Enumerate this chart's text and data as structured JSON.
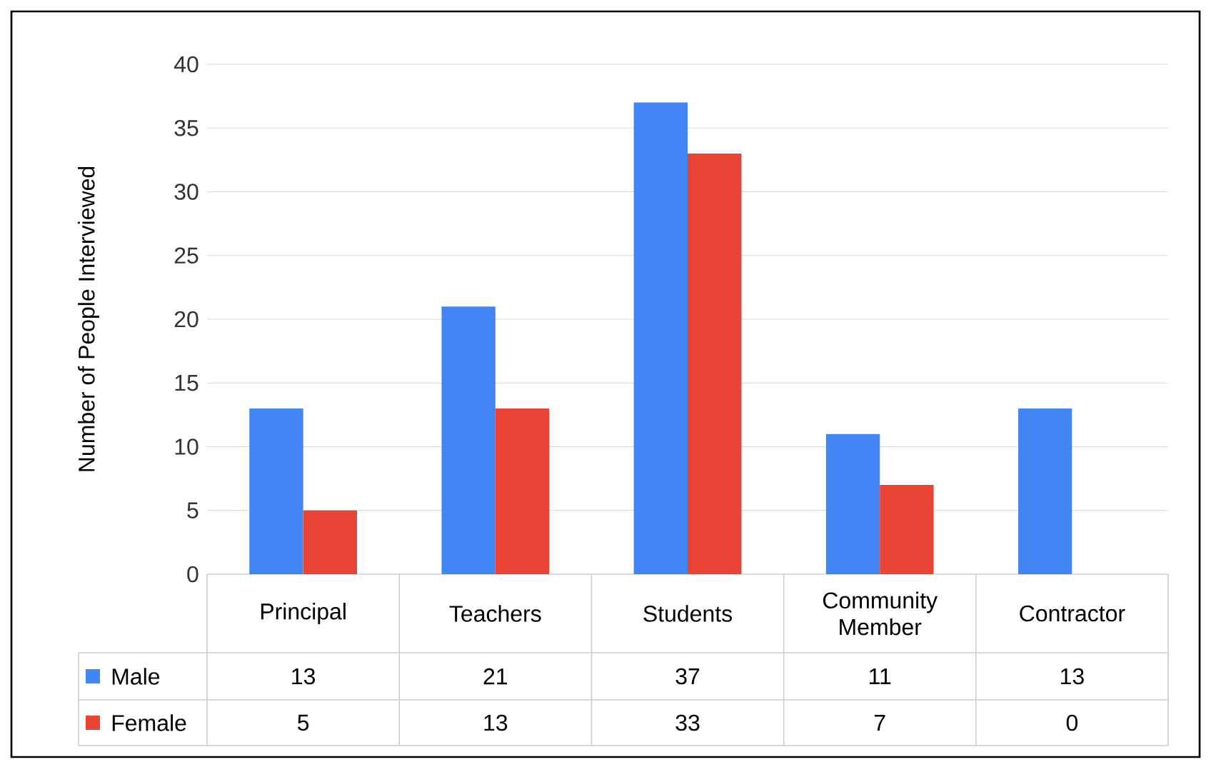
{
  "chart_data": {
    "type": "bar",
    "ylabel": "Number of People Interviewed",
    "categories": [
      "Principal",
      "Teachers",
      "Students",
      "Community Member",
      "Contractor"
    ],
    "series": [
      {
        "name": "Male",
        "color": "#4285f4",
        "values": [
          13,
          21,
          37,
          11,
          13
        ]
      },
      {
        "name": "Female",
        "color": "#ea4335",
        "values": [
          5,
          13,
          33,
          7,
          0
        ]
      }
    ],
    "ylim": [
      0,
      40
    ],
    "yticks": [
      0,
      5,
      10,
      15,
      20,
      25,
      30,
      35,
      40
    ],
    "grid": "y",
    "legend": "bottom",
    "data_labels": true
  }
}
